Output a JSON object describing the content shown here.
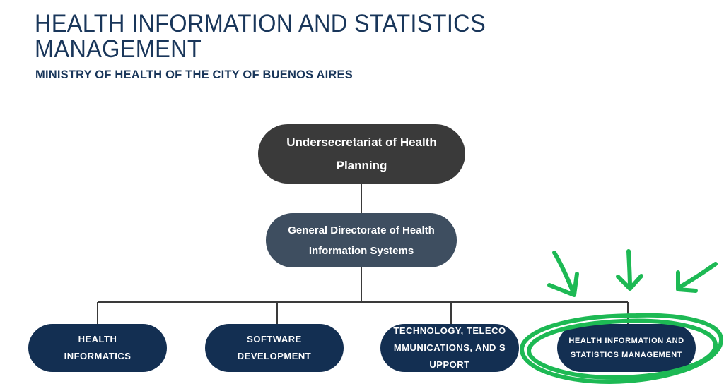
{
  "header": {
    "title": "HEALTH INFORMATION AND STATISTICS MANAGEMENT",
    "subtitle": "MINISTRY OF HEALTH OF THE CITY OF BUENOS AIRES"
  },
  "org_chart": {
    "root": "Undersecretariat of Health Planning",
    "directorate": "General Directorate of Health Information Systems",
    "units": [
      "HEALTH INFORMATICS",
      "SOFTWARE DEVELOPMENT",
      "TECHNOLOGY, TELECOMMUNICATIONS, AND SUPPORT",
      "HEALTH INFORMATION AND STATISTICS MANAGEMENT"
    ],
    "highlighted_unit": "HEALTH INFORMATION AND STATISTICS MANAGEMENT"
  },
  "colors": {
    "title": "#19365a",
    "root_node": "#3a3a3a",
    "directorate_node": "#3e4e60",
    "unit_node": "#132f52",
    "connector": "#3a3a3a",
    "highlight_annotation": "#1db954"
  },
  "icons": {
    "annotation": [
      "arrow-down-icon",
      "arrow-down-icon",
      "arrow-down-left-icon",
      "highlight-circle"
    ]
  }
}
